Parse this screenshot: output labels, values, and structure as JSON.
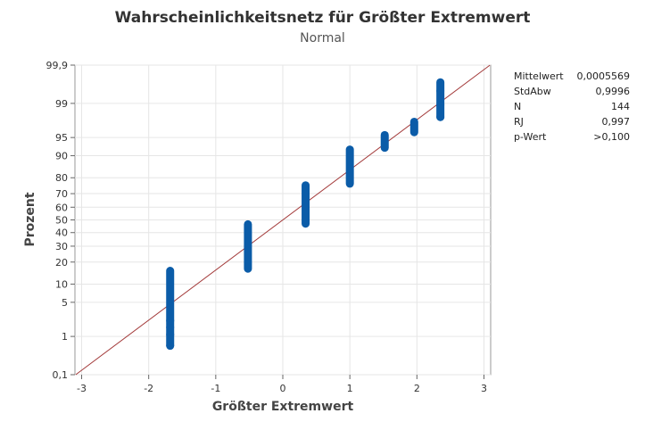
{
  "chart_data": {
    "type": "scatter",
    "title": "Wahrscheinlichkeitsnetz für Größter Extremwert",
    "subtitle": "Normal",
    "xlabel": "Größter Extremwert",
    "ylabel": "Prozent",
    "x_ticks": [
      -3,
      -2,
      -1,
      0,
      1,
      2,
      3
    ],
    "y_ticks": [
      0.1,
      1,
      5,
      10,
      20,
      30,
      40,
      50,
      60,
      70,
      80,
      90,
      95,
      99,
      99.9
    ],
    "y_tick_labels": [
      "0,1",
      "1",
      "5",
      "10",
      "20",
      "30",
      "40",
      "50",
      "60",
      "70",
      "80",
      "90",
      "95",
      "99",
      "99,9"
    ],
    "xlim": [
      -3.1,
      3.1
    ],
    "ylim": [
      0.1,
      99.9
    ],
    "y_scale": "normal-probability",
    "grid": true,
    "fit_line": {
      "mean": 0.0005569,
      "sd": 0.9996,
      "color": "#a33a3a"
    },
    "point_color": "#0b5ca8",
    "groups": [
      {
        "x": -1.68,
        "p_min": 0.6,
        "p_max": 15.5
      },
      {
        "x": -0.52,
        "p_min": 16.5,
        "p_max": 46.5
      },
      {
        "x": 0.34,
        "p_min": 47.0,
        "p_max": 75.5
      },
      {
        "x": 1.0,
        "p_min": 76.5,
        "p_max": 92.0
      },
      {
        "x": 1.52,
        "p_min": 92.5,
        "p_max": 95.5
      },
      {
        "x": 1.96,
        "p_min": 96.0,
        "p_max": 97.5
      },
      {
        "x": 2.35,
        "p_min": 98.0,
        "p_max": 99.7
      }
    ],
    "points": [
      {
        "x": -1.68,
        "p": 0.6
      },
      {
        "x": -1.68,
        "p": 1.1
      },
      {
        "x": -1.68,
        "p": 1.6
      },
      {
        "x": -1.68,
        "p": 2.2
      },
      {
        "x": 2.35,
        "p": 98.0
      },
      {
        "x": 2.35,
        "p": 98.9
      },
      {
        "x": 2.35,
        "p": 99.5
      }
    ]
  },
  "stats": [
    {
      "label": "Mittelwert",
      "value": "0,0005569"
    },
    {
      "label": "StdAbw",
      "value": "0,9996"
    },
    {
      "label": "N",
      "value": "144"
    },
    {
      "label": "RJ",
      "value": "0,997"
    },
    {
      "label": "p-Wert",
      "value": ">0,100"
    }
  ]
}
